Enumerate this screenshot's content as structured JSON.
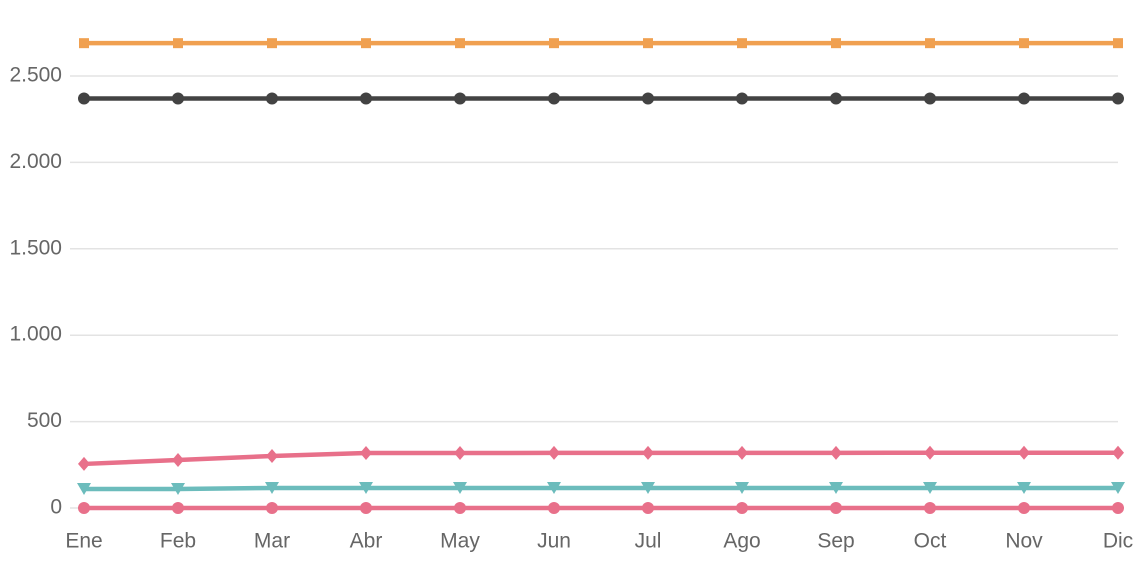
{
  "chart_data": {
    "type": "line",
    "categories": [
      "Ene",
      "Feb",
      "Mar",
      "Abr",
      "May",
      "Jun",
      "Jul",
      "Ago",
      "Sep",
      "Oct",
      "Nov",
      "Dic"
    ],
    "series": [
      {
        "color": "#f0a050",
        "marker": "square",
        "values": [
          2690,
          2690,
          2690,
          2690,
          2690,
          2690,
          2690,
          2690,
          2690,
          2690,
          2690,
          2690
        ]
      },
      {
        "color": "#434343",
        "marker": "circle",
        "values": [
          2370,
          2370,
          2370,
          2370,
          2370,
          2370,
          2370,
          2370,
          2370,
          2370,
          2370,
          2370
        ]
      },
      {
        "color": "#e8708a",
        "marker": "diamond",
        "values": [
          255,
          278,
          301,
          318,
          318,
          319,
          319,
          319,
          319,
          320,
          320,
          320
        ]
      },
      {
        "color": "#6cbcbc",
        "marker": "triangle-down",
        "values": [
          110,
          110,
          116,
          116,
          116,
          116,
          116,
          116,
          116,
          116,
          116,
          116
        ]
      },
      {
        "color": "#e8708a",
        "marker": "circle",
        "values": [
          0,
          0,
          0,
          0,
          0,
          0,
          0,
          0,
          0,
          0,
          0,
          0
        ]
      }
    ],
    "ylim": [
      0,
      2800
    ],
    "yticks": [
      0,
      500,
      {
        "value": 1000,
        "label": "1.000"
      },
      {
        "value": 1500,
        "label": "1.500"
      },
      {
        "value": 2000,
        "label": "2.000"
      },
      {
        "value": 2500,
        "label": "2.500"
      }
    ],
    "grid": true
  }
}
